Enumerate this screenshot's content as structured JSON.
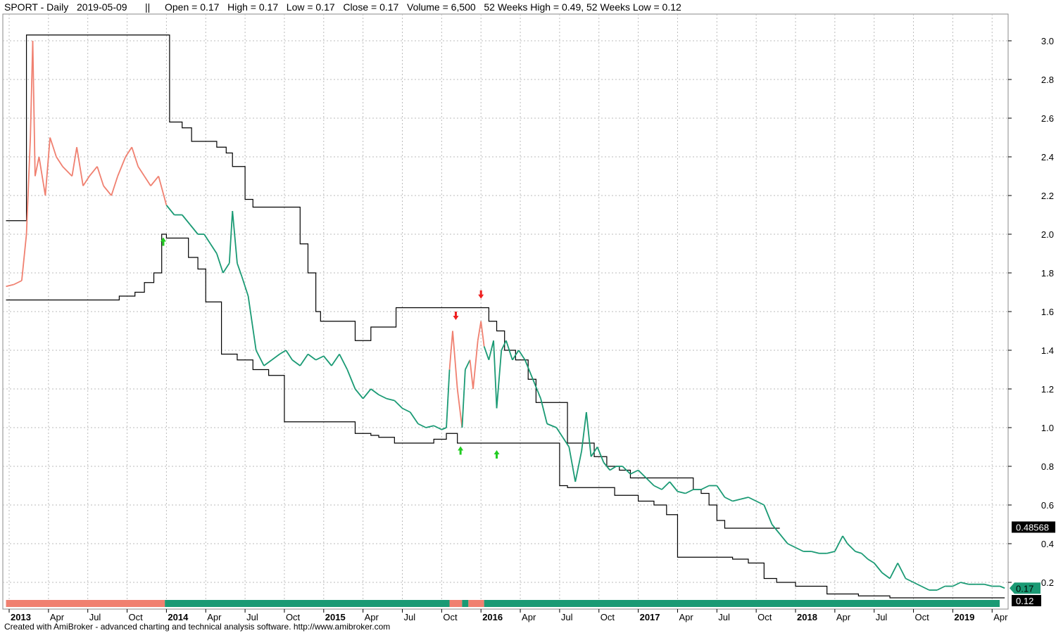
{
  "header": {
    "symbol_line": "SPORT - Daily   2019-05-09",
    "separator": "||",
    "quote_line": "Open = 0.17   High = 0.17   Low = 0.17   Close = 0.17   Volume = 6,500   52 Weeks High = 0.49, 52 Weeks Low = 0.12"
  },
  "footer": {
    "credit": "Created with AmiBroker - advanced charting and technical analysis software. http://www.amibroker.com"
  },
  "colors": {
    "up_trend": "#1a9a74",
    "down_trend": "#f08070",
    "channel_line": "#000000",
    "buy_arrow": "#22cc22",
    "sell_arrow": "#ee2020",
    "grid": "#bbbbbb",
    "label_green": "#1a9a74",
    "label_black": "#000000"
  },
  "chart_data": {
    "type": "line",
    "ylim": [
      0.1,
      3.1
    ],
    "y_ticks": [
      "3.0",
      "2.8",
      "2.6",
      "2.4",
      "2.2",
      "2.0",
      "1.8",
      "1.6",
      "1.4",
      "1.2",
      "1.0",
      "0.8",
      "0.6",
      "0.4",
      "0.2"
    ],
    "x_ticks": [
      {
        "label": "2013",
        "t": 0.0,
        "bold": true
      },
      {
        "label": "Apr",
        "t": 0.25
      },
      {
        "label": "Jul",
        "t": 0.5
      },
      {
        "label": "Oct",
        "t": 0.75
      },
      {
        "label": "2014",
        "t": 1.0,
        "bold": true
      },
      {
        "label": "Apr",
        "t": 1.25
      },
      {
        "label": "Jul",
        "t": 1.5
      },
      {
        "label": "Oct",
        "t": 1.75
      },
      {
        "label": "2015",
        "t": 2.0,
        "bold": true
      },
      {
        "label": "Apr",
        "t": 2.25
      },
      {
        "label": "Jul",
        "t": 2.5
      },
      {
        "label": "Oct",
        "t": 2.75
      },
      {
        "label": "2016",
        "t": 3.0,
        "bold": true
      },
      {
        "label": "Apr",
        "t": 3.25
      },
      {
        "label": "Jul",
        "t": 3.5
      },
      {
        "label": "Oct",
        "t": 3.75
      },
      {
        "label": "2017",
        "t": 4.0,
        "bold": true
      },
      {
        "label": "Apr",
        "t": 4.25
      },
      {
        "label": "Jul",
        "t": 4.5
      },
      {
        "label": "Oct",
        "t": 4.75
      },
      {
        "label": "2018",
        "t": 5.0,
        "bold": true
      },
      {
        "label": "Apr",
        "t": 5.25
      },
      {
        "label": "Jul",
        "t": 5.5
      },
      {
        "label": "Oct",
        "t": 5.75
      },
      {
        "label": "2019",
        "t": 6.0,
        "bold": true
      },
      {
        "label": "Apr",
        "t": 6.25
      }
    ],
    "price_series": [
      [
        -0.02,
        1.73
      ],
      [
        0.03,
        1.74
      ],
      [
        0.08,
        1.76
      ],
      [
        0.11,
        2.0
      ],
      [
        0.135,
        2.5
      ],
      [
        0.15,
        3.0
      ],
      [
        0.165,
        2.3
      ],
      [
        0.19,
        2.4
      ],
      [
        0.23,
        2.2
      ],
      [
        0.26,
        2.5
      ],
      [
        0.3,
        2.4
      ],
      [
        0.34,
        2.35
      ],
      [
        0.4,
        2.3
      ],
      [
        0.43,
        2.45
      ],
      [
        0.47,
        2.25
      ],
      [
        0.51,
        2.3
      ],
      [
        0.56,
        2.35
      ],
      [
        0.6,
        2.25
      ],
      [
        0.65,
        2.2
      ],
      [
        0.69,
        2.3
      ],
      [
        0.74,
        2.4
      ],
      [
        0.78,
        2.45
      ],
      [
        0.82,
        2.35
      ],
      [
        0.86,
        2.3
      ],
      [
        0.9,
        2.25
      ],
      [
        0.95,
        2.3
      ],
      [
        1.0,
        2.15
      ],
      [
        1.05,
        2.1
      ],
      [
        1.1,
        2.1
      ],
      [
        1.15,
        2.05
      ],
      [
        1.2,
        2.0
      ],
      [
        1.24,
        2.0
      ],
      [
        1.28,
        1.95
      ],
      [
        1.32,
        1.9
      ],
      [
        1.36,
        1.8
      ],
      [
        1.4,
        1.85
      ],
      [
        1.42,
        2.12
      ],
      [
        1.45,
        1.85
      ],
      [
        1.48,
        1.78
      ],
      [
        1.52,
        1.68
      ],
      [
        1.57,
        1.4
      ],
      [
        1.62,
        1.32
      ],
      [
        1.67,
        1.35
      ],
      [
        1.72,
        1.38
      ],
      [
        1.76,
        1.4
      ],
      [
        1.8,
        1.35
      ],
      [
        1.85,
        1.32
      ],
      [
        1.9,
        1.38
      ],
      [
        1.95,
        1.35
      ],
      [
        2.0,
        1.37
      ],
      [
        2.05,
        1.32
      ],
      [
        2.1,
        1.38
      ],
      [
        2.15,
        1.3
      ],
      [
        2.2,
        1.2
      ],
      [
        2.25,
        1.15
      ],
      [
        2.3,
        1.2
      ],
      [
        2.35,
        1.17
      ],
      [
        2.4,
        1.15
      ],
      [
        2.45,
        1.14
      ],
      [
        2.5,
        1.1
      ],
      [
        2.55,
        1.08
      ],
      [
        2.6,
        1.02
      ],
      [
        2.65,
        1.0
      ],
      [
        2.7,
        1.01
      ],
      [
        2.75,
        0.99
      ],
      [
        2.78,
        1.0
      ],
      [
        2.8,
        1.3
      ],
      [
        2.82,
        1.5
      ],
      [
        2.85,
        1.2
      ],
      [
        2.88,
        1.0
      ],
      [
        2.9,
        1.3
      ],
      [
        2.93,
        1.35
      ],
      [
        2.95,
        1.2
      ],
      [
        2.98,
        1.45
      ],
      [
        3.0,
        1.55
      ],
      [
        3.02,
        1.42
      ],
      [
        3.05,
        1.35
      ],
      [
        3.08,
        1.45
      ],
      [
        3.1,
        1.1
      ],
      [
        3.13,
        1.4
      ],
      [
        3.16,
        1.45
      ],
      [
        3.2,
        1.35
      ],
      [
        3.24,
        1.4
      ],
      [
        3.28,
        1.35
      ],
      [
        3.33,
        1.25
      ],
      [
        3.38,
        1.15
      ],
      [
        3.42,
        1.02
      ],
      [
        3.48,
        1.0
      ],
      [
        3.52,
        0.95
      ],
      [
        3.56,
        0.9
      ],
      [
        3.6,
        0.72
      ],
      [
        3.64,
        0.88
      ],
      [
        3.67,
        1.08
      ],
      [
        3.7,
        0.85
      ],
      [
        3.74,
        0.9
      ],
      [
        3.78,
        0.82
      ],
      [
        3.82,
        0.78
      ],
      [
        3.86,
        0.8
      ],
      [
        3.9,
        0.8
      ],
      [
        3.95,
        0.76
      ],
      [
        4.0,
        0.78
      ],
      [
        4.05,
        0.74
      ],
      [
        4.1,
        0.7
      ],
      [
        4.15,
        0.68
      ],
      [
        4.2,
        0.72
      ],
      [
        4.25,
        0.67
      ],
      [
        4.3,
        0.66
      ],
      [
        4.35,
        0.68
      ],
      [
        4.4,
        0.68
      ],
      [
        4.45,
        0.7
      ],
      [
        4.5,
        0.7
      ],
      [
        4.55,
        0.64
      ],
      [
        4.6,
        0.62
      ],
      [
        4.65,
        0.63
      ],
      [
        4.7,
        0.64
      ],
      [
        4.75,
        0.62
      ],
      [
        4.8,
        0.6
      ],
      [
        4.85,
        0.5
      ],
      [
        4.9,
        0.45
      ],
      [
        4.95,
        0.4
      ],
      [
        5.0,
        0.38
      ],
      [
        5.05,
        0.36
      ],
      [
        5.1,
        0.36
      ],
      [
        5.15,
        0.35
      ],
      [
        5.2,
        0.35
      ],
      [
        5.25,
        0.36
      ],
      [
        5.3,
        0.44
      ],
      [
        5.33,
        0.4
      ],
      [
        5.38,
        0.36
      ],
      [
        5.42,
        0.35
      ],
      [
        5.46,
        0.32
      ],
      [
        5.5,
        0.3
      ],
      [
        5.55,
        0.25
      ],
      [
        5.6,
        0.22
      ],
      [
        5.65,
        0.3
      ],
      [
        5.7,
        0.22
      ],
      [
        5.75,
        0.2
      ],
      [
        5.8,
        0.18
      ],
      [
        5.85,
        0.16
      ],
      [
        5.9,
        0.16
      ],
      [
        5.95,
        0.18
      ],
      [
        6.0,
        0.18
      ],
      [
        6.05,
        0.2
      ],
      [
        6.1,
        0.19
      ],
      [
        6.15,
        0.19
      ],
      [
        6.2,
        0.19
      ],
      [
        6.25,
        0.18
      ],
      [
        6.3,
        0.18
      ],
      [
        6.33,
        0.17
      ]
    ],
    "upper_channel": [
      [
        -0.02,
        2.07
      ],
      [
        0.1,
        2.07
      ],
      [
        0.11,
        3.03
      ],
      [
        1.0,
        3.03
      ],
      [
        1.02,
        2.58
      ],
      [
        1.1,
        2.55
      ],
      [
        1.16,
        2.48
      ],
      [
        1.28,
        2.48
      ],
      [
        1.32,
        2.45
      ],
      [
        1.38,
        2.42
      ],
      [
        1.42,
        2.35
      ],
      [
        1.5,
        2.18
      ],
      [
        1.55,
        2.14
      ],
      [
        1.8,
        2.14
      ],
      [
        1.85,
        1.95
      ],
      [
        1.9,
        1.8
      ],
      [
        1.95,
        1.6
      ],
      [
        1.98,
        1.55
      ],
      [
        2.15,
        1.55
      ],
      [
        2.2,
        1.45
      ],
      [
        2.26,
        1.45
      ],
      [
        2.3,
        1.52
      ],
      [
        2.42,
        1.52
      ],
      [
        2.46,
        1.62
      ],
      [
        3.0,
        1.62
      ],
      [
        3.05,
        1.55
      ],
      [
        3.1,
        1.5
      ],
      [
        3.15,
        1.4
      ],
      [
        3.22,
        1.35
      ],
      [
        3.3,
        1.25
      ],
      [
        3.35,
        1.13
      ],
      [
        3.5,
        1.13
      ],
      [
        3.55,
        0.92
      ],
      [
        3.65,
        0.92
      ],
      [
        3.72,
        0.85
      ],
      [
        3.8,
        0.8
      ],
      [
        3.88,
        0.78
      ],
      [
        3.95,
        0.74
      ],
      [
        4.3,
        0.74
      ],
      [
        4.35,
        0.68
      ],
      [
        4.4,
        0.66
      ],
      [
        4.45,
        0.6
      ],
      [
        4.5,
        0.52
      ],
      [
        4.55,
        0.48
      ],
      [
        4.9,
        0.48
      ]
    ],
    "lower_channel": [
      [
        -0.02,
        1.66
      ],
      [
        0.6,
        1.66
      ],
      [
        0.7,
        1.68
      ],
      [
        0.8,
        1.7
      ],
      [
        0.86,
        1.75
      ],
      [
        0.92,
        1.8
      ],
      [
        0.97,
        2.0
      ],
      [
        1.0,
        1.98
      ],
      [
        1.1,
        1.98
      ],
      [
        1.14,
        1.88
      ],
      [
        1.2,
        1.82
      ],
      [
        1.25,
        1.65
      ],
      [
        1.35,
        1.38
      ],
      [
        1.45,
        1.35
      ],
      [
        1.55,
        1.3
      ],
      [
        1.65,
        1.27
      ],
      [
        1.7,
        1.27
      ],
      [
        1.75,
        1.03
      ],
      [
        2.1,
        1.03
      ],
      [
        2.2,
        0.97
      ],
      [
        2.3,
        0.96
      ],
      [
        2.35,
        0.95
      ],
      [
        2.45,
        0.92
      ],
      [
        2.6,
        0.92
      ],
      [
        2.7,
        0.94
      ],
      [
        2.78,
        0.97
      ],
      [
        2.85,
        0.92
      ],
      [
        3.1,
        0.92
      ],
      [
        3.2,
        0.92
      ],
      [
        3.3,
        0.92
      ],
      [
        3.45,
        0.92
      ],
      [
        3.5,
        0.7
      ],
      [
        3.55,
        0.69
      ],
      [
        3.75,
        0.69
      ],
      [
        3.85,
        0.65
      ],
      [
        4.0,
        0.62
      ],
      [
        4.1,
        0.6
      ],
      [
        4.18,
        0.55
      ],
      [
        4.25,
        0.33
      ],
      [
        4.4,
        0.33
      ],
      [
        4.6,
        0.32
      ],
      [
        4.7,
        0.3
      ],
      [
        4.8,
        0.22
      ],
      [
        4.88,
        0.2
      ],
      [
        5.0,
        0.18
      ],
      [
        5.2,
        0.14
      ],
      [
        5.4,
        0.13
      ],
      [
        5.6,
        0.12
      ],
      [
        6.33,
        0.12
      ]
    ],
    "buy_signals": [
      [
        0.98,
        2.02
      ],
      [
        2.87,
        0.94
      ],
      [
        3.1,
        0.92
      ]
    ],
    "sell_signals": [
      [
        2.84,
        1.52
      ],
      [
        3.0,
        1.63
      ]
    ],
    "trend_ribbon": [
      {
        "from": -0.02,
        "to": 0.99,
        "state": "down"
      },
      {
        "from": 0.99,
        "to": 2.8,
        "state": "up"
      },
      {
        "from": 2.8,
        "to": 2.88,
        "state": "down"
      },
      {
        "from": 2.88,
        "to": 2.92,
        "state": "up"
      },
      {
        "from": 2.92,
        "to": 3.02,
        "state": "down"
      },
      {
        "from": 3.02,
        "to": 6.33,
        "state": "up"
      }
    ],
    "right_labels": [
      {
        "text": "0.48568",
        "value": 0.48568,
        "style": "black"
      },
      {
        "text": "0.17",
        "value": 0.17,
        "style": "green"
      },
      {
        "text": "0.12",
        "value": 0.12,
        "style": "black"
      }
    ]
  }
}
